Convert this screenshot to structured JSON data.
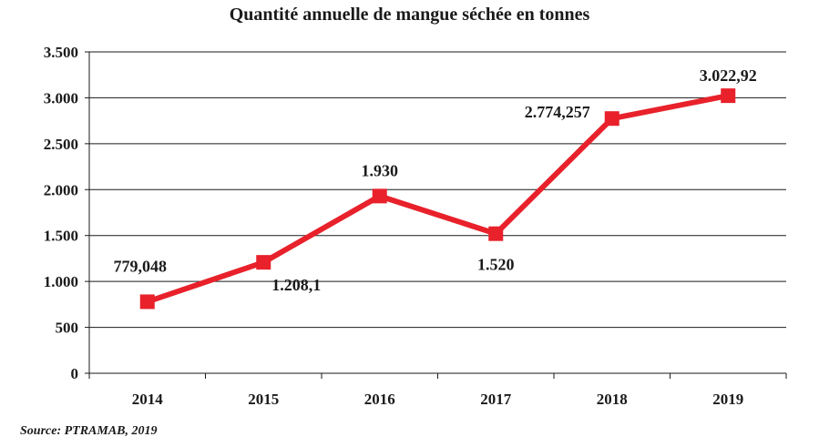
{
  "chart_data": {
    "type": "line",
    "title": "Quantité annuelle de mangue séchée en tonnes",
    "categories": [
      "2014",
      "2015",
      "2016",
      "2017",
      "2018",
      "2019"
    ],
    "series": [
      {
        "values": [
          779.048,
          1208.1,
          1930,
          1520,
          2774.257,
          3022.92
        ],
        "labels": [
          "779,048",
          "1.208,1",
          "1.930",
          "1.520",
          "2.774,257",
          "3.022,92"
        ],
        "color": "#e8212b",
        "marker": "square"
      }
    ],
    "yticks": [
      0,
      500,
      1000,
      1500,
      2000,
      2500,
      3000,
      3500
    ],
    "ytick_labels": [
      "0",
      "500",
      "1.000",
      "1.500",
      "2.000",
      "2.500",
      "3.000",
      "3.500"
    ],
    "ylim": [
      0,
      3500
    ],
    "grid": true,
    "xlabel": "",
    "ylabel": ""
  },
  "source": "Source: PTRAMAB, 2019"
}
